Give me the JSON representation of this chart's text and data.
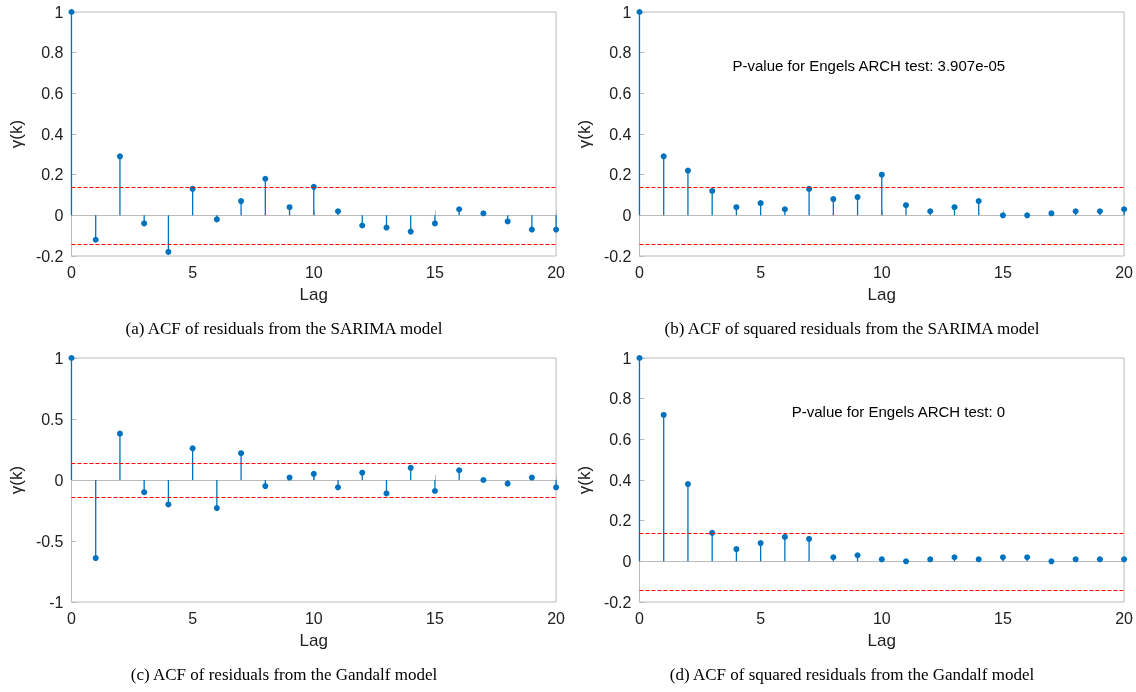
{
  "chart_data": [
    {
      "type": "lollipop",
      "title": "(a) ACF of residuals from the SARIMA model",
      "xlabel": "Lag",
      "ylabel": "γ(k)",
      "x": [
        0,
        1,
        2,
        3,
        4,
        5,
        6,
        7,
        8,
        9,
        10,
        11,
        12,
        13,
        14,
        15,
        16,
        17,
        18,
        19,
        20
      ],
      "values": [
        1,
        -0.12,
        0.29,
        -0.04,
        -0.18,
        0.13,
        -0.02,
        0.07,
        0.18,
        0.04,
        0.14,
        0.02,
        -0.05,
        -0.06,
        -0.08,
        -0.04,
        0.03,
        0.01,
        -0.03,
        -0.07,
        -0.07
      ],
      "color": "#0072bd",
      "marker": "circle",
      "xlim": [
        0,
        20
      ],
      "xticks": [
        0,
        5,
        10,
        15,
        20
      ],
      "ylim": [
        -0.2,
        1
      ],
      "yticks": [
        -0.2,
        0,
        0.2,
        0.4,
        0.6,
        0.8,
        1
      ],
      "ref_lines": [
        {
          "axis": "y",
          "value": 0.14,
          "color": "#ff0000",
          "line_style": "dashed"
        },
        {
          "axis": "y",
          "value": -0.14,
          "color": "#ff0000",
          "line_style": "dashed"
        }
      ]
    },
    {
      "type": "lollipop",
      "title": "(b) ACF of squared residuals from the SARIMA model",
      "xlabel": "Lag",
      "ylabel": "γ(k)",
      "x": [
        0,
        1,
        2,
        3,
        4,
        5,
        6,
        7,
        8,
        9,
        10,
        11,
        12,
        13,
        14,
        15,
        16,
        17,
        18,
        19,
        20
      ],
      "values": [
        1,
        0.29,
        0.22,
        0.12,
        0.04,
        0.06,
        0.03,
        0.13,
        0.08,
        0.09,
        0.2,
        0.05,
        0.02,
        0.04,
        0.07,
        0,
        0,
        0.01,
        0.02,
        0.02,
        0.03
      ],
      "color": "#0072bd",
      "marker": "circle",
      "xlim": [
        0,
        20
      ],
      "xticks": [
        0,
        5,
        10,
        15,
        20
      ],
      "ylim": [
        -0.2,
        1
      ],
      "yticks": [
        -0.2,
        0,
        0.2,
        0.4,
        0.6,
        0.8,
        1
      ],
      "annotations": [
        "P-value for Engels ARCH test: 3.907e-05"
      ],
      "ref_lines": [
        {
          "axis": "y",
          "value": 0.14,
          "color": "#ff0000",
          "line_style": "dashed"
        },
        {
          "axis": "y",
          "value": -0.14,
          "color": "#ff0000",
          "line_style": "dashed"
        }
      ]
    },
    {
      "type": "lollipop",
      "title": "(c) ACF of residuals from the Gandalf model",
      "xlabel": "Lag",
      "ylabel": "γ(k)",
      "x": [
        0,
        1,
        2,
        3,
        4,
        5,
        6,
        7,
        8,
        9,
        10,
        11,
        12,
        13,
        14,
        15,
        16,
        17,
        18,
        19,
        20
      ],
      "values": [
        1,
        -0.64,
        0.38,
        -0.1,
        -0.2,
        0.26,
        -0.23,
        0.22,
        -0.05,
        0.02,
        0.05,
        -0.06,
        0.06,
        -0.11,
        0.1,
        -0.09,
        0.08,
        0,
        -0.03,
        0.02,
        -0.06
      ],
      "color": "#0072bd",
      "marker": "circle",
      "xlim": [
        0,
        20
      ],
      "xticks": [
        0,
        5,
        10,
        15,
        20
      ],
      "ylim": [
        -1,
        1
      ],
      "yticks": [
        -1,
        -0.5,
        0,
        0.5,
        1
      ],
      "ref_lines": [
        {
          "axis": "y",
          "value": 0.14,
          "color": "#ff0000",
          "line_style": "dashed"
        },
        {
          "axis": "y",
          "value": -0.14,
          "color": "#ff0000",
          "line_style": "dashed"
        }
      ]
    },
    {
      "type": "lollipop",
      "title": "(d) ACF of squared residuals from the Gandalf model",
      "xlabel": "Lag",
      "ylabel": "γ(k)",
      "x": [
        0,
        1,
        2,
        3,
        4,
        5,
        6,
        7,
        8,
        9,
        10,
        11,
        12,
        13,
        14,
        15,
        16,
        17,
        18,
        19,
        20
      ],
      "values": [
        1,
        0.72,
        0.38,
        0.14,
        0.06,
        0.09,
        0.12,
        0.11,
        0.02,
        0.03,
        0.01,
        0,
        0.01,
        0.02,
        0.01,
        0.02,
        0.02,
        0,
        0.01,
        0.01,
        0.01
      ],
      "color": "#0072bd",
      "marker": "circle",
      "xlim": [
        0,
        20
      ],
      "xticks": [
        0,
        5,
        10,
        15,
        20
      ],
      "ylim": [
        -0.2,
        1
      ],
      "yticks": [
        -0.2,
        0,
        0.2,
        0.4,
        0.6,
        0.8,
        1
      ],
      "annotations": [
        "P-value for Engels ARCH test: 0"
      ],
      "ref_lines": [
        {
          "axis": "y",
          "value": 0.14,
          "color": "#ff0000",
          "line_style": "dashed"
        },
        {
          "axis": "y",
          "value": -0.14,
          "color": "#ff0000",
          "line_style": "dashed"
        }
      ]
    }
  ]
}
